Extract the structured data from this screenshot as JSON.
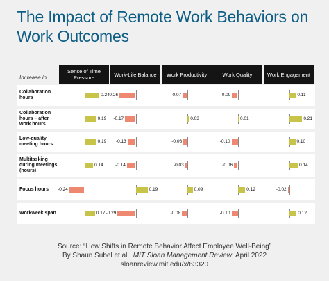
{
  "title": "The Impact of Remote Work Behaviors on Work Outcomes",
  "row_header_label": "Increase in...",
  "source": {
    "line1": "Source: “How Shifts in Remote Behavior Affect Employee Well-Being”",
    "line2_prefix": "By Shaun Subel et al., ",
    "line2_italic": "MIT Sloan Management Review",
    "line2_suffix": ", April 2022",
    "line3": "sloanreview.mit.edu/x/63320"
  },
  "colors": {
    "positive": "#c8c44a",
    "negative": "#ef8870",
    "title": "#0d5d85",
    "header_bg": "#141414"
  },
  "chart_data": {
    "type": "table",
    "title": "The Impact of Remote Work Behaviors on Work Outcomes",
    "columns": [
      "Sense of Time Pressure",
      "Work-Life Balance",
      "Work Productivity",
      "Work Quality",
      "Work Engagement"
    ],
    "rows": [
      {
        "label": "Collaboration hours",
        "values": [
          0.24,
          -0.26,
          -0.07,
          -0.09,
          0.11
        ],
        "display": [
          "0.24",
          "-0.26",
          "-0.07",
          "-0.09",
          "0.11"
        ]
      },
      {
        "label": "Collaboration hours – after work hours",
        "values": [
          0.19,
          -0.17,
          0.03,
          0.01,
          0.21
        ],
        "display": [
          "0.19",
          "-0.17",
          "0.03",
          "0.01",
          "0.21"
        ]
      },
      {
        "label": "Low-quality meeting hours",
        "values": [
          0.19,
          -0.13,
          -0.06,
          -0.1,
          0.1
        ],
        "display": [
          "0.19",
          "-0.13",
          "-0.06",
          "-0.10",
          "0.10"
        ]
      },
      {
        "label": "Multitasking during meetings (hours)",
        "values": [
          0.14,
          -0.14,
          -0.03,
          -0.06,
          0.14
        ],
        "display": [
          "0.14",
          "-0.14",
          "-0.03",
          "-0.06",
          "0.14"
        ]
      },
      {
        "label": "Focus hours",
        "values": [
          -0.24,
          0.19,
          0.09,
          0.12,
          -0.02
        ],
        "display": [
          "-0.24",
          "0.19",
          "0.09",
          "0.12",
          "-0.02"
        ]
      },
      {
        "label": "Workweek span",
        "values": [
          0.17,
          -0.29,
          -0.08,
          -0.1,
          0.12
        ],
        "display": [
          "0.17",
          "-0.29",
          "-0.08",
          "-0.10",
          "0.12"
        ]
      }
    ]
  }
}
